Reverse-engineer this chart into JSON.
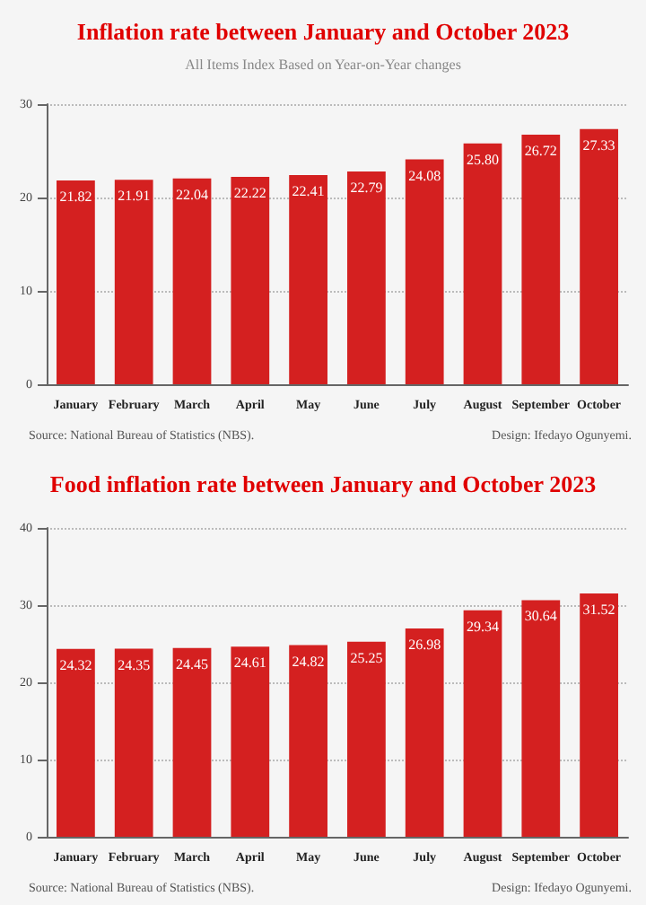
{
  "chart_data": [
    {
      "type": "bar",
      "title": "Inflation rate between January and October 2023",
      "subtitle": "All Items Index Based on Year-on-Year changes",
      "categories": [
        "January",
        "February",
        "March",
        "April",
        "May",
        "June",
        "July",
        "August",
        "September",
        "October"
      ],
      "values": [
        21.82,
        21.91,
        22.04,
        22.22,
        22.41,
        22.79,
        24.08,
        25.8,
        26.72,
        27.33
      ],
      "value_labels": [
        "21.82",
        "21.91",
        "22.04",
        "22.22",
        "22.41",
        "22.79",
        "24.08",
        "25.80",
        "26.72",
        "27.33"
      ],
      "color": "#d42020",
      "ylim": [
        0,
        30
      ],
      "yticks": [
        0,
        10,
        20,
        30
      ],
      "grid": "y",
      "annotations": [
        "Source: National Bureau of Statistics (NBS).",
        "Design: Ifedayo Ogunyemi."
      ]
    },
    {
      "type": "bar",
      "title": "Food inflation rate between January and October 2023",
      "categories": [
        "January",
        "February",
        "March",
        "April",
        "May",
        "June",
        "July",
        "August",
        "September",
        "October"
      ],
      "values": [
        24.32,
        24.35,
        24.45,
        24.61,
        24.82,
        25.25,
        26.98,
        29.34,
        30.64,
        31.52
      ],
      "color": "#d42020",
      "ylim": [
        0,
        40
      ],
      "yticks": [
        0,
        10,
        20,
        30,
        40
      ],
      "grid": "y",
      "data_labels": true,
      "annotations": [
        "Source: National Bureau of Statistics (NBS).",
        "Design: Ifedayo Ogunyemi."
      ]
    }
  ]
}
